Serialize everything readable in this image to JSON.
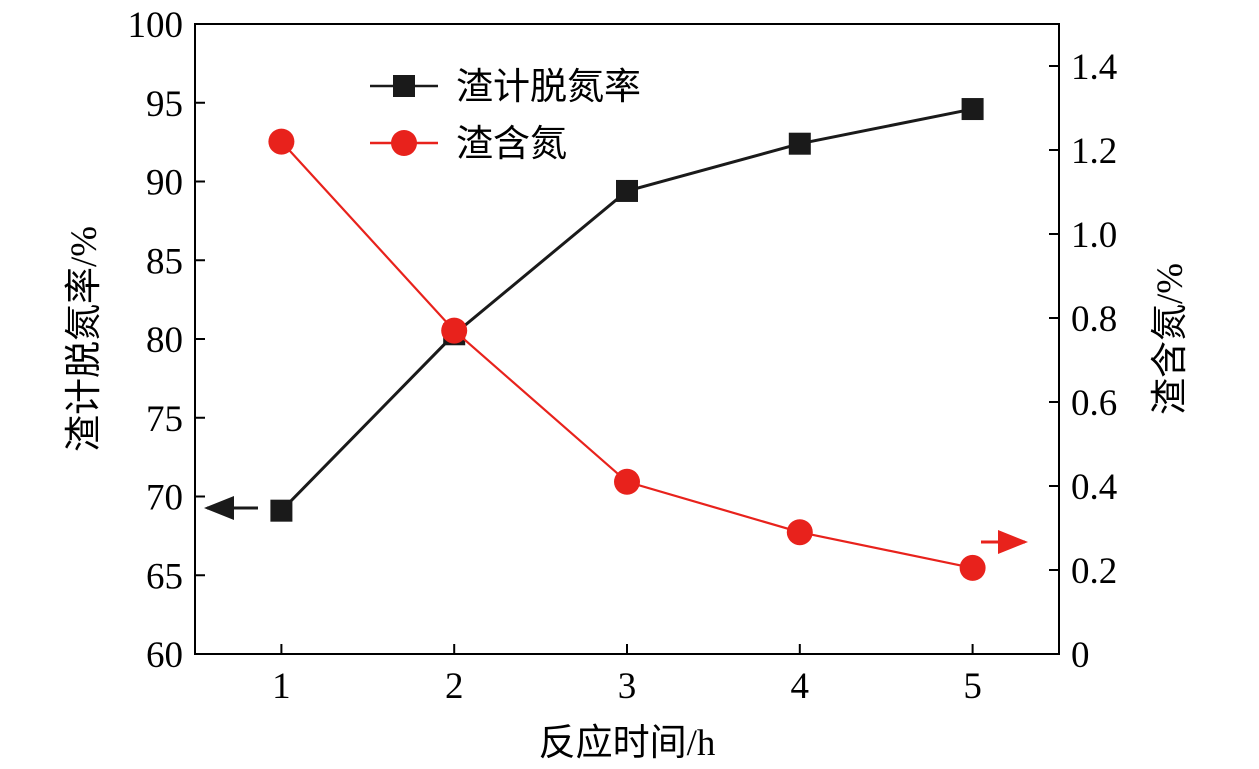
{
  "chart_data": {
    "type": "line",
    "x": [
      1,
      2,
      3,
      4,
      5
    ],
    "xlabel": "反应时间/h",
    "ylabel_left": "渣计脱氮率/%",
    "ylabel_right": "渣含氮/%",
    "xlim": [
      0.5,
      5.5
    ],
    "ylim_left": [
      60,
      100
    ],
    "ylim_right": [
      0,
      1.5
    ],
    "x_ticks": [
      "1",
      "2",
      "3",
      "4",
      "5"
    ],
    "y_left_ticks": [
      "60",
      "65",
      "70",
      "75",
      "80",
      "85",
      "90",
      "95",
      "100"
    ],
    "y_right_ticks": [
      "0",
      "0.2",
      "0.4",
      "0.6",
      "0.8",
      "1.0",
      "1.2",
      "1.4"
    ],
    "grid": false,
    "legend_position": "top-center",
    "series": [
      {
        "name": "渣计脱氮率",
        "axis": "left",
        "color": "#1a1a1a",
        "marker": "square",
        "values": [
          69.1,
          80.3,
          89.4,
          92.4,
          94.6
        ]
      },
      {
        "name": "渣含氮",
        "axis": "right",
        "color": "#e8221c",
        "marker": "circle",
        "values": [
          1.22,
          0.77,
          0.41,
          0.29,
          0.205
        ]
      }
    ]
  }
}
